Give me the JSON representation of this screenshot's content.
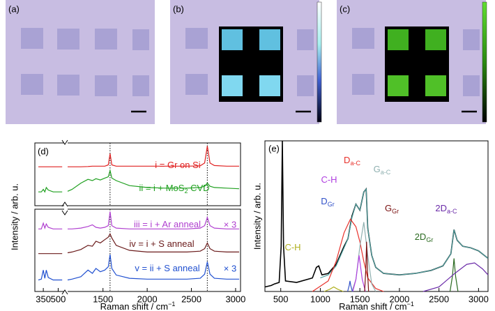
{
  "panel_labels": [
    "(a)",
    "(b)",
    "(c)",
    "(d)",
    "(e)"
  ],
  "chart_data": [
    {
      "type": "line",
      "x": [
        300,
        330,
        350,
        365,
        380,
        400,
        450,
        500,
        540,
        800,
        1100,
        1150,
        1250,
        1330,
        1380,
        1420,
        1470,
        1520,
        1560,
        1580,
        1600,
        1650,
        1800,
        2000,
        2200,
        2450,
        2600,
        2650,
        2680,
        2710,
        2760,
        2900,
        3040
      ],
      "xlim_segments": [
        [
          300,
          560
        ],
        [
          1100,
          3040
        ]
      ],
      "ylim": [
        0,
        10
      ],
      "vlines": [
        1580,
        2680
      ],
      "series": [
        {
          "name": "i = Gr on Si",
          "color": "#e02020",
          "values": [
            6.2,
            6.2,
            6.2,
            6.2,
            6.2,
            6.2,
            6.2,
            6.2,
            6.2,
            null,
            6.2,
            6.2,
            6.2,
            6.25,
            6.3,
            6.3,
            6.3,
            6.3,
            6.5,
            8.3,
            6.5,
            6.3,
            6.3,
            6.3,
            6.3,
            6.3,
            6.35,
            6.8,
            9.5,
            6.8,
            6.4,
            6.3,
            6.3
          ]
        },
        {
          "name": "ii = i + MoS",
          "name_sub": "2",
          "name_tail": " CVD",
          "color": "#20a020",
          "values": [
            2.2,
            2.2,
            2.6,
            2.2,
            2.9,
            2.5,
            2.2,
            2.2,
            2.2,
            null,
            2.3,
            2.6,
            3.6,
            4.2,
            4.0,
            4.3,
            4.1,
            4.4,
            4.6,
            5.6,
            4.4,
            4.0,
            3.2,
            2.9,
            2.8,
            2.8,
            2.9,
            3.1,
            3.6,
            3.1,
            2.9,
            2.8,
            2.7
          ]
        }
      ]
    },
    {
      "type": "line",
      "x": [
        300,
        330,
        350,
        365,
        380,
        400,
        450,
        500,
        540,
        800,
        1100,
        1150,
        1250,
        1330,
        1380,
        1420,
        1470,
        1520,
        1560,
        1580,
        1600,
        1650,
        1800,
        2000,
        2200,
        2450,
        2600,
        2650,
        2680,
        2710,
        2760,
        2900,
        3040
      ],
      "xlim_segments": [
        [
          300,
          560
        ],
        [
          1100,
          3040
        ]
      ],
      "ylim": [
        0,
        10
      ],
      "vlines": [
        1580,
        2680
      ],
      "xticks": [
        350,
        500,
        1500,
        2000,
        2500,
        3000
      ],
      "xlabel": "Raman shift / cm",
      "xlabel_sup": "−1",
      "ylabel": "Intensity / arb. u.",
      "series": [
        {
          "name": "iii = i + Ar anneal",
          "note": "× 3",
          "color": "#b040d0",
          "values": [
            7.6,
            7.6,
            8.3,
            7.7,
            8.2,
            7.8,
            7.6,
            7.6,
            7.6,
            null,
            7.6,
            7.6,
            7.7,
            7.9,
            8.1,
            7.8,
            7.7,
            7.8,
            8.0,
            9.7,
            8.0,
            7.7,
            7.6,
            7.6,
            7.6,
            7.6,
            7.7,
            8.0,
            9.0,
            8.0,
            7.7,
            7.6,
            7.6
          ]
        },
        {
          "name": "iv = i + S anneal",
          "color": "#6a1a1a",
          "values": [
            4.6,
            4.6,
            4.6,
            4.6,
            4.6,
            4.6,
            4.6,
            4.6,
            4.6,
            null,
            4.7,
            4.8,
            5.1,
            5.6,
            5.5,
            6.1,
            5.9,
            6.3,
            6.6,
            7.0,
            6.5,
            5.6,
            5.0,
            4.8,
            4.8,
            4.8,
            4.9,
            5.2,
            5.9,
            5.2,
            4.9,
            4.8,
            4.8
          ]
        },
        {
          "name": "v = ii + S anneal",
          "note": "× 3",
          "color": "#2050d0",
          "values": [
            1.4,
            1.5,
            2.6,
            1.6,
            2.6,
            1.7,
            1.4,
            1.4,
            1.4,
            null,
            1.4,
            1.5,
            1.8,
            2.6,
            2.2,
            2.8,
            2.4,
            2.6,
            3.0,
            4.5,
            2.8,
            2.0,
            1.6,
            1.5,
            1.5,
            1.5,
            1.6,
            2.1,
            3.6,
            2.1,
            1.6,
            1.5,
            1.5
          ]
        }
      ]
    },
    {
      "type": "line",
      "xlim": [
        300,
        3120
      ],
      "ylim": [
        0,
        10
      ],
      "xticks": [
        500,
        1000,
        1500,
        2000,
        2500,
        3000
      ],
      "xlabel": "Raman shift / cm",
      "xlabel_sup": "−1",
      "ylabel": "Intensity / arb. u.",
      "series": [
        {
          "color": "#000000",
          "x": [
            300,
            380,
            420,
            480,
            505,
            520,
            535,
            560,
            700,
            900,
            950,
            980,
            1020,
            1100,
            1200,
            1300,
            1350,
            1400,
            1450,
            1500,
            1550,
            1580,
            1600,
            1650,
            1700,
            1800,
            2000,
            2200,
            2400,
            2550,
            2650,
            2690,
            2730,
            2800,
            2900,
            3000,
            3120
          ],
          "values": [
            0.3,
            0.4,
            0.5,
            0.6,
            3,
            10,
            3,
            0.7,
            0.6,
            0.9,
            1.6,
            1.7,
            1.1,
            1.2,
            1.8,
            3.0,
            3.5,
            5.0,
            5.8,
            5.4,
            6.6,
            6.8,
            4.2,
            2.4,
            1.6,
            1.2,
            1.1,
            1.2,
            1.4,
            1.7,
            2.5,
            4.1,
            3.4,
            3.0,
            2.9,
            2.7,
            2.2
          ]
        },
        {
          "color": "#4fa0a0",
          "x": [
            1000,
            1100,
            1200,
            1300,
            1350,
            1400,
            1450,
            1500,
            1550,
            1580,
            1600,
            1650,
            1700,
            1800,
            2000,
            2200,
            2400,
            2550,
            2650,
            2690,
            2730,
            2800,
            2900,
            3000,
            3120
          ],
          "values": [
            0.9,
            1.1,
            1.7,
            2.9,
            3.5,
            4.9,
            5.8,
            5.4,
            6.6,
            6.8,
            4.2,
            2.4,
            1.6,
            1.2,
            1.1,
            1.2,
            1.4,
            1.7,
            2.5,
            4.1,
            3.4,
            3.0,
            2.9,
            2.7,
            2.2
          ]
        },
        {
          "name": "D",
          "sub": "a-C",
          "color": "#e8302a",
          "x": [
            900,
            1100,
            1200,
            1300,
            1380,
            1450,
            1500,
            1550,
            1600,
            1700,
            1800
          ],
          "values": [
            0,
            0.7,
            2.0,
            3.9,
            4.8,
            4.3,
            3.3,
            2.0,
            0.9,
            0.2,
            0
          ]
        },
        {
          "name": "G",
          "sub": "a-C",
          "color": "#8fb0b0",
          "x": [
            1400,
            1450,
            1500,
            1550,
            1600,
            1650,
            1700
          ],
          "values": [
            0,
            0.8,
            3.0,
            4.6,
            2.4,
            0.5,
            0
          ]
        },
        {
          "name": "C-H",
          "color": "#b040e0",
          "x": [
            1410,
            1450,
            1490,
            1530,
            1570
          ],
          "values": [
            0,
            0.8,
            2.4,
            0.8,
            0
          ]
        },
        {
          "name": "D",
          "sub": "Gr",
          "color": "#3050c8",
          "x": [
            1345,
            1365,
            1375,
            1385,
            1405
          ],
          "values": [
            0,
            0.4,
            0.7,
            0.4,
            0
          ]
        },
        {
          "name": "C-H",
          "color": "#b0b020",
          "x": [
            1050,
            1120,
            1170,
            1220,
            1290
          ],
          "values": [
            0,
            0.15,
            0.3,
            0.15,
            0
          ]
        },
        {
          "name": "G",
          "sub": "Gr",
          "color": "#7a1010",
          "x": [
            1560,
            1575,
            1585,
            1595,
            1610
          ],
          "values": [
            0,
            1.5,
            3.3,
            1.5,
            0
          ]
        },
        {
          "name": "2D",
          "sub": "Gr",
          "color": "#2a6a20",
          "x": [
            2640,
            2670,
            2690,
            2710,
            2740
          ],
          "values": [
            0,
            1.0,
            2.2,
            1.0,
            0
          ]
        },
        {
          "name": "2D",
          "sub": "a-C",
          "color": "#6a2aa8",
          "x": [
            2300,
            2500,
            2700,
            2850,
            2950,
            3050,
            3120
          ],
          "values": [
            0,
            0.3,
            1.2,
            1.8,
            1.9,
            1.5,
            1.1
          ]
        }
      ]
    }
  ]
}
